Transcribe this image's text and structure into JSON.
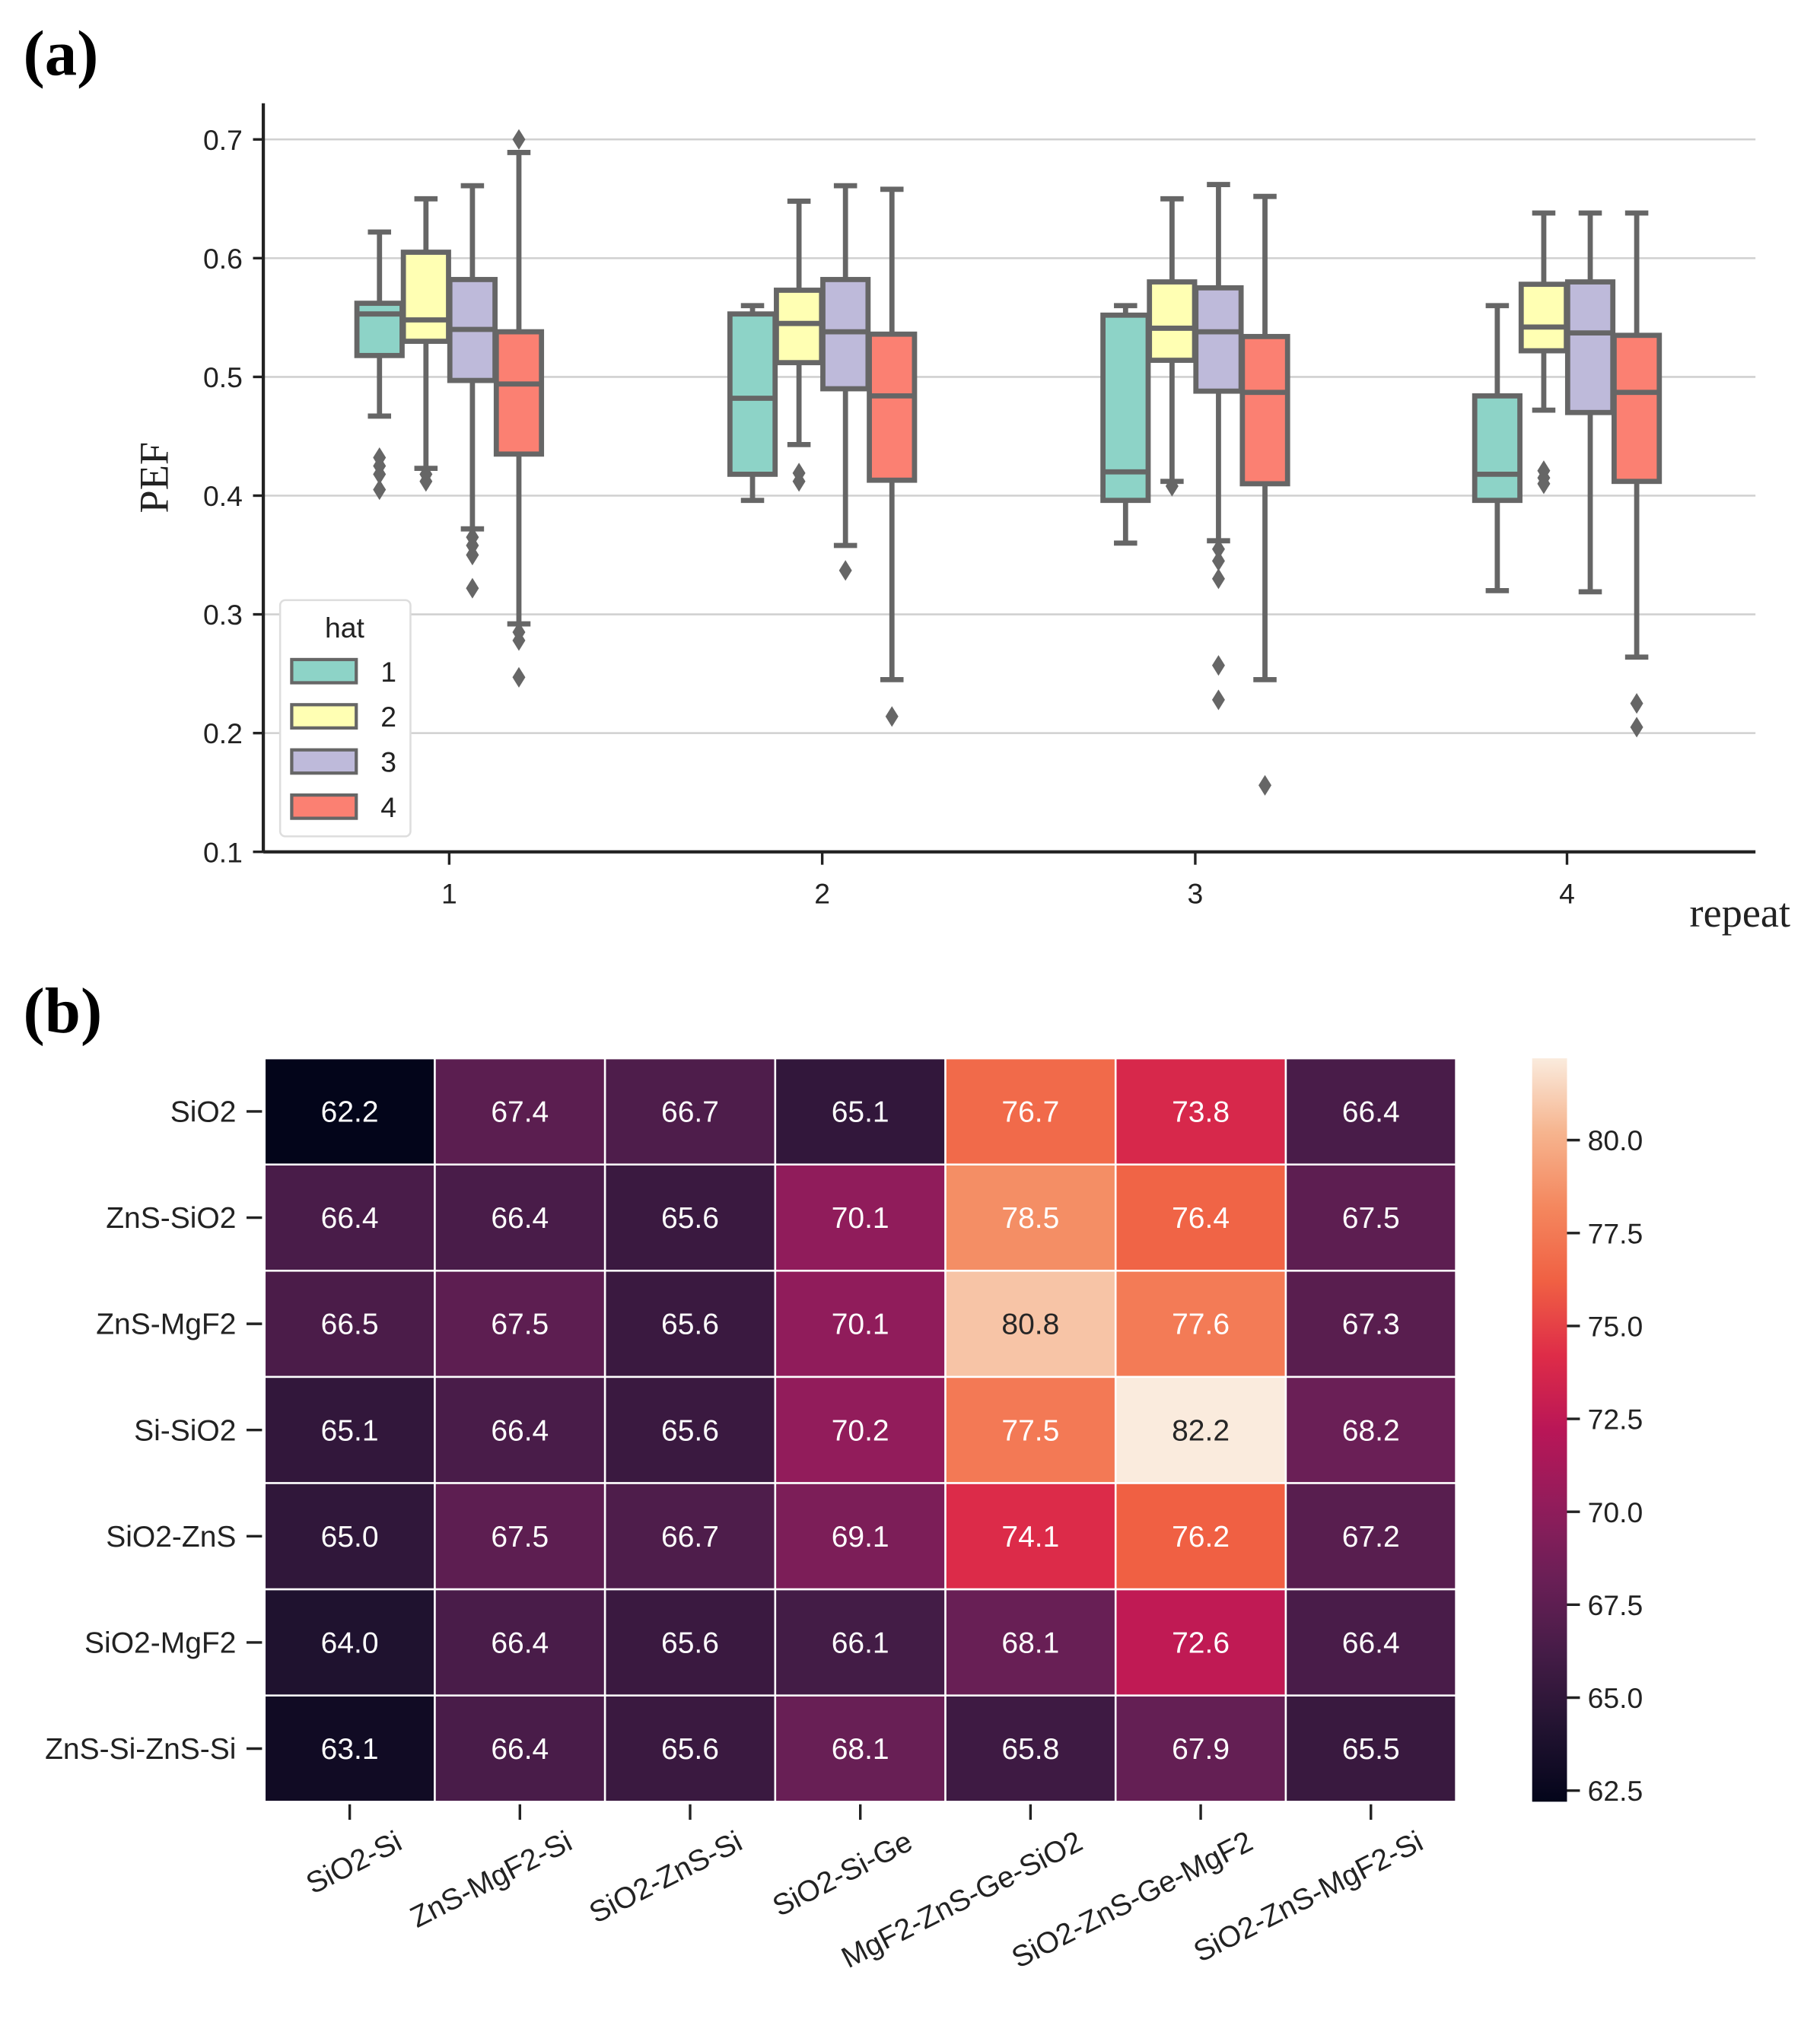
{
  "chart_data": [
    {
      "type": "box",
      "panel_label": "(a)",
      "xlabel": "repeat",
      "ylabel": "PEF",
      "ylim": [
        0.1,
        0.72
      ],
      "yticks": [
        "0.1",
        "0.2",
        "0.3",
        "0.4",
        "0.5",
        "0.6",
        "0.7"
      ],
      "ytick_values": [
        0.1,
        0.2,
        0.3,
        0.4,
        0.5,
        0.6,
        0.7
      ],
      "categories": [
        "1",
        "2",
        "3",
        "4"
      ],
      "grid": "horizontal",
      "legend": {
        "title": "hat",
        "placement": "lower-left",
        "entries": [
          "1",
          "2",
          "3",
          "4"
        ]
      },
      "colors": [
        "#8dd3c7",
        "#ffffb3",
        "#bebada",
        "#fb8072"
      ],
      "edge_color": "#666666",
      "series": [
        {
          "name": "1",
          "boxes": [
            {
              "lo": 0.467,
              "q1": 0.518,
              "med": 0.553,
              "q3": 0.562,
              "hi": 0.622,
              "outliers": [
                0.405,
                0.418,
                0.425,
                0.432
              ]
            },
            {
              "lo": 0.396,
              "q1": 0.418,
              "med": 0.482,
              "q3": 0.553,
              "hi": 0.56,
              "outliers": []
            },
            {
              "lo": 0.36,
              "q1": 0.396,
              "med": 0.42,
              "q3": 0.552,
              "hi": 0.56,
              "outliers": []
            },
            {
              "lo": 0.32,
              "q1": 0.396,
              "med": 0.418,
              "q3": 0.484,
              "hi": 0.56,
              "outliers": []
            }
          ]
        },
        {
          "name": "2",
          "boxes": [
            {
              "lo": 0.423,
              "q1": 0.53,
              "med": 0.548,
              "q3": 0.605,
              "hi": 0.65,
              "outliers": [
                0.412,
                0.418
              ]
            },
            {
              "lo": 0.443,
              "q1": 0.512,
              "med": 0.545,
              "q3": 0.573,
              "hi": 0.648,
              "outliers": [
                0.412,
                0.419
              ]
            },
            {
              "lo": 0.412,
              "q1": 0.514,
              "med": 0.541,
              "q3": 0.58,
              "hi": 0.65,
              "outliers": [
                0.408
              ]
            },
            {
              "lo": 0.472,
              "q1": 0.522,
              "med": 0.542,
              "q3": 0.578,
              "hi": 0.638,
              "outliers": [
                0.41,
                0.415,
                0.421
              ]
            }
          ]
        },
        {
          "name": "3",
          "boxes": [
            {
              "lo": 0.372,
              "q1": 0.497,
              "med": 0.54,
              "q3": 0.582,
              "hi": 0.661,
              "outliers": [
                0.322,
                0.35,
                0.358,
                0.365
              ]
            },
            {
              "lo": 0.358,
              "q1": 0.49,
              "med": 0.538,
              "q3": 0.582,
              "hi": 0.661,
              "outliers": [
                0.337
              ]
            },
            {
              "lo": 0.362,
              "q1": 0.488,
              "med": 0.538,
              "q3": 0.575,
              "hi": 0.662,
              "outliers": [
                0.228,
                0.257,
                0.33,
                0.345,
                0.355
              ]
            },
            {
              "lo": 0.319,
              "q1": 0.47,
              "med": 0.537,
              "q3": 0.58,
              "hi": 0.638,
              "outliers": []
            }
          ]
        },
        {
          "name": "4",
          "boxes": [
            {
              "lo": 0.292,
              "q1": 0.435,
              "med": 0.494,
              "q3": 0.538,
              "hi": 0.689,
              "outliers": [
                0.247,
                0.278,
                0.285,
                0.7
              ]
            },
            {
              "lo": 0.245,
              "q1": 0.413,
              "med": 0.484,
              "q3": 0.536,
              "hi": 0.658,
              "outliers": [
                0.214
              ]
            },
            {
              "lo": 0.245,
              "q1": 0.41,
              "med": 0.487,
              "q3": 0.534,
              "hi": 0.652,
              "outliers": [
                0.156
              ]
            },
            {
              "lo": 0.264,
              "q1": 0.412,
              "med": 0.487,
              "q3": 0.535,
              "hi": 0.638,
              "outliers": [
                0.205,
                0.225
              ]
            }
          ]
        }
      ]
    },
    {
      "type": "heatmap",
      "panel_label": "(b)",
      "colormap": "rocket",
      "vmin": 62.2,
      "vmax": 82.2,
      "rows": [
        "SiO2",
        "ZnS-SiO2",
        "ZnS-MgF2",
        "Si-SiO2",
        "SiO2-ZnS",
        "SiO2-MgF2",
        "ZnS-Si-ZnS-Si"
      ],
      "columns": [
        "SiO2-Si",
        "ZnS-MgF2-Si",
        "SiO2-ZnS-Si",
        "SiO2-Si-Ge",
        "MgF2-ZnS-Ge-SiO2",
        "SiO2-ZnS-Ge-MgF2",
        "SiO2-ZnS-MgF2-Si"
      ],
      "values": [
        [
          "62.2",
          "67.4",
          "66.7",
          "65.1",
          "76.7",
          "73.8",
          "66.4"
        ],
        [
          "66.4",
          "66.4",
          "65.6",
          "70.1",
          "78.5",
          "76.4",
          "67.5"
        ],
        [
          "66.5",
          "67.5",
          "65.6",
          "70.1",
          "80.8",
          "77.6",
          "67.3"
        ],
        [
          "65.1",
          "66.4",
          "65.6",
          "70.2",
          "77.5",
          "82.2",
          "68.2"
        ],
        [
          "65.0",
          "67.5",
          "66.7",
          "69.1",
          "74.1",
          "76.2",
          "67.2"
        ],
        [
          "64.0",
          "66.4",
          "65.6",
          "66.1",
          "68.1",
          "72.6",
          "66.4"
        ],
        [
          "63.1",
          "66.4",
          "65.6",
          "68.1",
          "65.8",
          "67.9",
          "65.5"
        ]
      ],
      "colorbar_ticks": [
        "62.5",
        "65.0",
        "67.5",
        "70.0",
        "72.5",
        "75.0",
        "77.5",
        "80.0"
      ],
      "colorbar_tick_values": [
        62.5,
        65.0,
        67.5,
        70.0,
        72.5,
        75.0,
        77.5,
        80.0
      ]
    }
  ]
}
